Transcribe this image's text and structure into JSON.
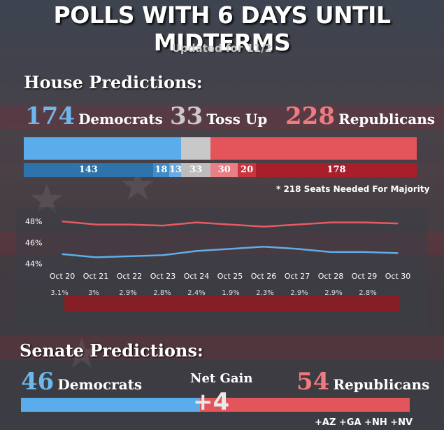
{
  "title": "POLLS WITH 6 DAYS UNTIL MIDTERMS",
  "updated": "Updated for 11/2",
  "house": {
    "heading": "House Predictions:",
    "dem_count": "174",
    "dem_label": "Democrats",
    "toss_count": "33",
    "toss_label": "Toss Up",
    "rep_count": "228",
    "rep_label": "Republicans",
    "breakdown": [
      {
        "value": 143,
        "label": "143",
        "color": "#2c74ab"
      },
      {
        "value": 18,
        "label": "18",
        "color": "#3e8cc8"
      },
      {
        "value": 13,
        "label": "13",
        "color": "#6aace0"
      },
      {
        "value": 33,
        "label": "33",
        "color": "#bdbdbd"
      },
      {
        "value": 30,
        "label": "30",
        "color": "#e87f84"
      },
      {
        "value": 20,
        "label": "20",
        "color": "#c9343f"
      },
      {
        "value": 178,
        "label": "178",
        "color": "#a81f2b"
      }
    ],
    "note": "* 218 Seats Needed For Majority"
  },
  "chart_data": {
    "type": "line",
    "x": [
      "Oct 20",
      "Oct 21",
      "Oct 22",
      "Oct 23",
      "Oct 24",
      "Oct 25",
      "Oct 26",
      "Oct 27",
      "Oct 28",
      "Oct 29",
      "Oct 30"
    ],
    "series": [
      {
        "color": "#e85a60",
        "values": [
          48.0,
          47.7,
          47.7,
          47.6,
          47.9,
          47.7,
          47.5,
          47.7,
          47.9,
          47.9,
          47.8
        ]
      },
      {
        "color": "#5faee8",
        "values": [
          44.9,
          44.6,
          44.7,
          44.8,
          45.2,
          45.4,
          45.6,
          45.4,
          45.1,
          45.1,
          45.0
        ]
      }
    ],
    "margin_labels": [
      "3.1%",
      "3%",
      "2.9%",
      "2.8%",
      "2.4%",
      "1.9%",
      "2.3%",
      "2.9%",
      "2.9%",
      "2.8%"
    ],
    "margin_values": [
      3.1,
      3.0,
      2.9,
      2.8,
      2.4,
      1.9,
      2.3,
      2.9,
      2.9,
      2.8
    ],
    "yticks": [
      "48%",
      "46%",
      "44%"
    ],
    "ylim": [
      43.5,
      48.8
    ],
    "grid": false
  },
  "senate": {
    "heading": "Senate Predictions:",
    "dem_count": "46",
    "dem_label": "Democrats",
    "net_gain_label": "Net Gain",
    "net_gain_value": "+4",
    "rep_count": "54",
    "rep_label": "Republicans",
    "states": "+AZ +GA +NH +NV",
    "dem_seats": 46,
    "rep_seats": 54
  },
  "colors": {
    "dem": "#5aacea",
    "toss": "#c8c8c8",
    "rep": "#e3545b"
  }
}
